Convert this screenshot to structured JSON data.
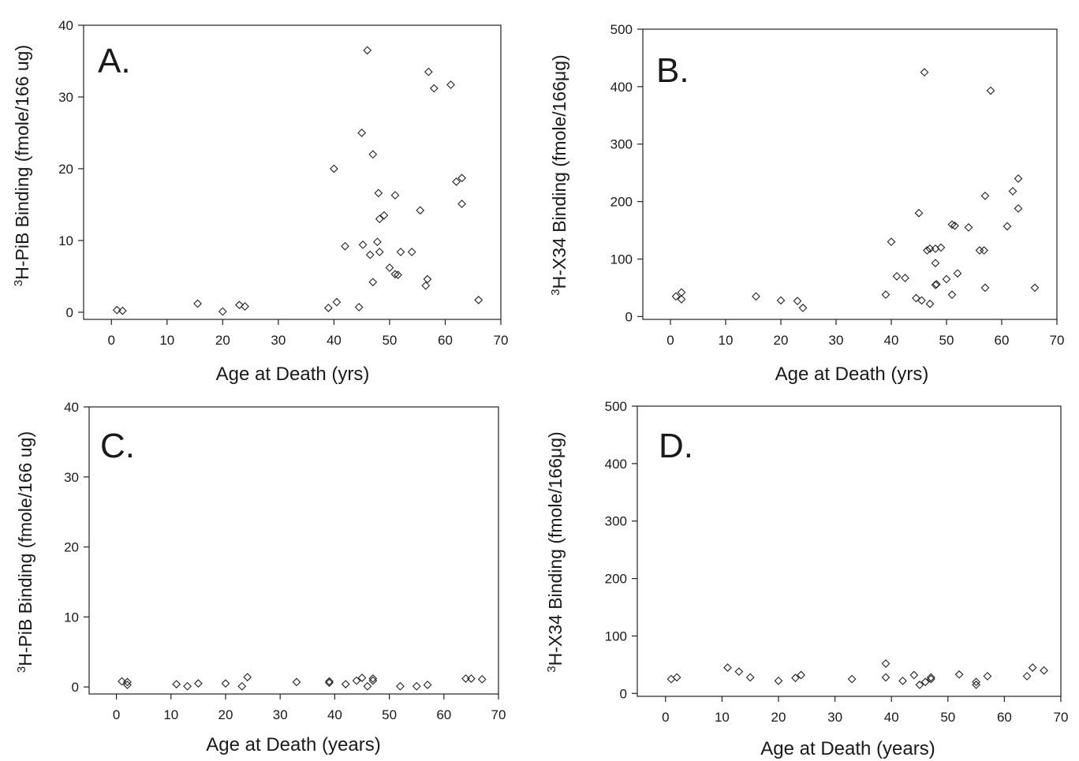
{
  "chart_data": [
    {
      "panel": "A.",
      "type": "scatter",
      "marker": "diamond",
      "xlabel": "Age at Death (yrs)",
      "ylabel": {
        "superscript": "3",
        "text": "H-PiB Binding (fmole/166 ug)"
      },
      "xlim": [
        -5,
        70
      ],
      "ylim": [
        -1,
        40
      ],
      "xticks": [
        0,
        10,
        20,
        30,
        40,
        50,
        60,
        70
      ],
      "yticks": [
        0,
        10,
        20,
        30,
        40
      ],
      "points": [
        [
          1,
          0.3
        ],
        [
          2,
          0.2
        ],
        [
          15.5,
          1.2
        ],
        [
          20,
          0.1
        ],
        [
          23,
          1.0
        ],
        [
          24,
          0.8
        ],
        [
          39,
          0.6
        ],
        [
          40,
          20
        ],
        [
          40.5,
          1.4
        ],
        [
          42,
          9.2
        ],
        [
          44.5,
          0.7
        ],
        [
          45,
          25
        ],
        [
          45.2,
          9.4
        ],
        [
          46,
          36.5
        ],
        [
          46.5,
          8.0
        ],
        [
          47,
          22
        ],
        [
          47,
          4.2
        ],
        [
          47.8,
          9.8
        ],
        [
          48,
          16.6
        ],
        [
          48.2,
          8.4
        ],
        [
          48.2,
          13
        ],
        [
          49,
          13.5
        ],
        [
          50,
          6.2
        ],
        [
          51,
          16.3
        ],
        [
          51,
          5.3
        ],
        [
          51.5,
          5.2
        ],
        [
          52,
          8.4
        ],
        [
          54,
          8.4
        ],
        [
          55.5,
          14.2
        ],
        [
          56.5,
          3.7
        ],
        [
          56.8,
          4.6
        ],
        [
          57,
          33.5
        ],
        [
          58,
          31.2
        ],
        [
          61,
          31.7
        ],
        [
          62,
          18.2
        ],
        [
          63,
          18.7
        ],
        [
          63,
          15.1
        ],
        [
          66,
          1.7
        ]
      ]
    },
    {
      "panel": "B.",
      "type": "scatter",
      "marker": "diamond",
      "xlabel": "Age at Death (yrs)",
      "ylabel": {
        "superscript": "3",
        "text": "H-X34 Binding (fmole/166μg)"
      },
      "xlim": [
        -5,
        70
      ],
      "ylim": [
        -5,
        500
      ],
      "xticks": [
        0,
        10,
        20,
        30,
        40,
        50,
        60,
        70
      ],
      "yticks": [
        0,
        100,
        200,
        300,
        400,
        500
      ],
      "points": [
        [
          1,
          35
        ],
        [
          2,
          30
        ],
        [
          2,
          42
        ],
        [
          15.5,
          35
        ],
        [
          20,
          28
        ],
        [
          23,
          27
        ],
        [
          24,
          15
        ],
        [
          39,
          38
        ],
        [
          40,
          130
        ],
        [
          41,
          70
        ],
        [
          42.5,
          67
        ],
        [
          44.5,
          32
        ],
        [
          45,
          180
        ],
        [
          45.5,
          28
        ],
        [
          46,
          425
        ],
        [
          46.5,
          115
        ],
        [
          47,
          118
        ],
        [
          47,
          22
        ],
        [
          48,
          118
        ],
        [
          48,
          93
        ],
        [
          48,
          55
        ],
        [
          48.2,
          56
        ],
        [
          49,
          120
        ],
        [
          50,
          65
        ],
        [
          51,
          160
        ],
        [
          51,
          38
        ],
        [
          51.5,
          158
        ],
        [
          52,
          75
        ],
        [
          54,
          155
        ],
        [
          56,
          115
        ],
        [
          56.8,
          115
        ],
        [
          57,
          210
        ],
        [
          57,
          50
        ],
        [
          58,
          393
        ],
        [
          61,
          157
        ],
        [
          62,
          218
        ],
        [
          63,
          240
        ],
        [
          63,
          188
        ],
        [
          66,
          50
        ]
      ]
    },
    {
      "panel": "C.",
      "type": "scatter",
      "marker": "diamond",
      "xlabel": "Age at Death (years)",
      "ylabel": {
        "superscript": "3",
        "text": "H-PiB Binding (fmole/166 ug)"
      },
      "xlim": [
        -5,
        70
      ],
      "ylim": [
        -1,
        40
      ],
      "xticks": [
        0,
        10,
        20,
        30,
        40,
        50,
        60,
        70
      ],
      "yticks": [
        0,
        10,
        20,
        30,
        40
      ],
      "points": [
        [
          1,
          0.8
        ],
        [
          2,
          0.7
        ],
        [
          2,
          0.3
        ],
        [
          11,
          0.4
        ],
        [
          13,
          0.1
        ],
        [
          15,
          0.5
        ],
        [
          20,
          0.5
        ],
        [
          23,
          0.1
        ],
        [
          24,
          1.4
        ],
        [
          33,
          0.7
        ],
        [
          39,
          0.8
        ],
        [
          39,
          0.6
        ],
        [
          42,
          0.4
        ],
        [
          44,
          0.9
        ],
        [
          45,
          1.3
        ],
        [
          46,
          0.1
        ],
        [
          47,
          1.2
        ],
        [
          47,
          0.9
        ],
        [
          52,
          0.1
        ],
        [
          55,
          0.1
        ],
        [
          57,
          0.3
        ],
        [
          64,
          1.2
        ],
        [
          65,
          1.2
        ],
        [
          67,
          1.1
        ]
      ]
    },
    {
      "panel": "D.",
      "type": "scatter",
      "marker": "diamond",
      "xlabel": "Age at Death (years)",
      "ylabel": {
        "superscript": "3",
        "text": "H-X34 Binding (fmole/166μg)"
      },
      "xlim": [
        -5,
        70
      ],
      "ylim": [
        -5,
        500
      ],
      "xticks": [
        0,
        10,
        20,
        30,
        40,
        50,
        60,
        70
      ],
      "yticks": [
        0,
        100,
        200,
        300,
        400,
        500
      ],
      "points": [
        [
          1,
          25
        ],
        [
          2,
          28
        ],
        [
          11,
          45
        ],
        [
          13,
          38
        ],
        [
          15,
          28
        ],
        [
          20,
          22
        ],
        [
          23,
          27
        ],
        [
          24,
          32
        ],
        [
          33,
          25
        ],
        [
          39,
          52
        ],
        [
          39,
          28
        ],
        [
          42,
          22
        ],
        [
          44,
          32
        ],
        [
          45,
          15
        ],
        [
          46,
          20
        ],
        [
          47,
          28
        ],
        [
          47,
          25
        ],
        [
          52,
          33
        ],
        [
          55,
          20
        ],
        [
          55,
          15
        ],
        [
          57,
          30
        ],
        [
          64,
          30
        ],
        [
          65,
          45
        ],
        [
          67,
          40
        ]
      ]
    }
  ]
}
